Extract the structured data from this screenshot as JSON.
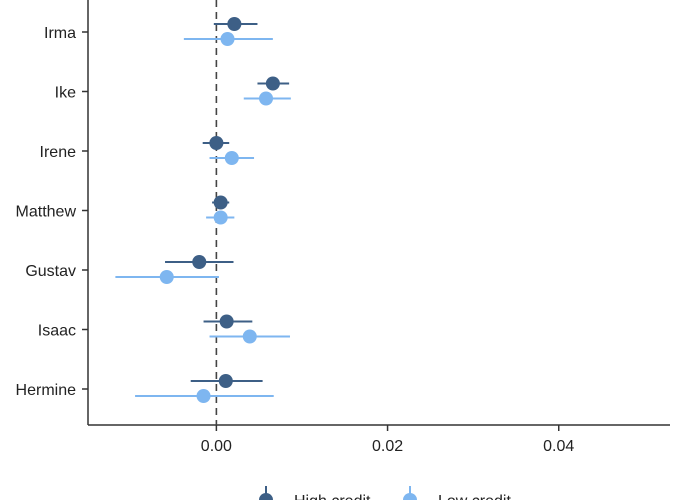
{
  "chart_data": {
    "type": "scatter",
    "subtype": "forest-plot",
    "title": "",
    "xlabel": "",
    "ylabel": "",
    "xlim": [
      -0.015,
      0.053
    ],
    "x_ticks": [
      0.0,
      0.02,
      0.04
    ],
    "x_tick_labels": [
      "0.00",
      "0.02",
      "0.04"
    ],
    "reference_line": {
      "x": 0,
      "style": "dashed"
    },
    "categories": [
      "Irma",
      "Ike",
      "Irene",
      "Matthew",
      "Gustav",
      "Isaac",
      "Hermine"
    ],
    "series": [
      {
        "name": "High credit",
        "color": "#3d5f86",
        "values": [
          {
            "category": "Irma",
            "estimate": 0.0021,
            "low": -0.0003,
            "high": 0.0048
          },
          {
            "category": "Ike",
            "estimate": 0.0066,
            "low": 0.0048,
            "high": 0.0085
          },
          {
            "category": "Irene",
            "estimate": 0.0,
            "low": -0.0016,
            "high": 0.0015
          },
          {
            "category": "Matthew",
            "estimate": 0.0005,
            "low": -0.0005,
            "high": 0.0015
          },
          {
            "category": "Gustav",
            "estimate": -0.002,
            "low": -0.006,
            "high": 0.002
          },
          {
            "category": "Isaac",
            "estimate": 0.0012,
            "low": -0.0015,
            "high": 0.0042
          },
          {
            "category": "Hermine",
            "estimate": 0.0011,
            "low": -0.003,
            "high": 0.0054
          }
        ]
      },
      {
        "name": "Low credit",
        "color": "#7eb6f0",
        "values": [
          {
            "category": "Irma",
            "estimate": 0.0013,
            "low": -0.0038,
            "high": 0.0066
          },
          {
            "category": "Ike",
            "estimate": 0.0058,
            "low": 0.0032,
            "high": 0.0087
          },
          {
            "category": "Irene",
            "estimate": 0.0018,
            "low": -0.0008,
            "high": 0.0044
          },
          {
            "category": "Matthew",
            "estimate": 0.0005,
            "low": -0.0012,
            "high": 0.0021
          },
          {
            "category": "Gustav",
            "estimate": -0.0058,
            "low": -0.0118,
            "high": 0.0003
          },
          {
            "category": "Isaac",
            "estimate": 0.0039,
            "low": -0.0008,
            "high": 0.0086
          },
          {
            "category": "Hermine",
            "estimate": -0.0015,
            "low": -0.0095,
            "high": 0.0067
          }
        ]
      }
    ],
    "legend": {
      "position": "bottom",
      "entries": [
        "High credit",
        "Low credit"
      ]
    },
    "grid": false
  }
}
